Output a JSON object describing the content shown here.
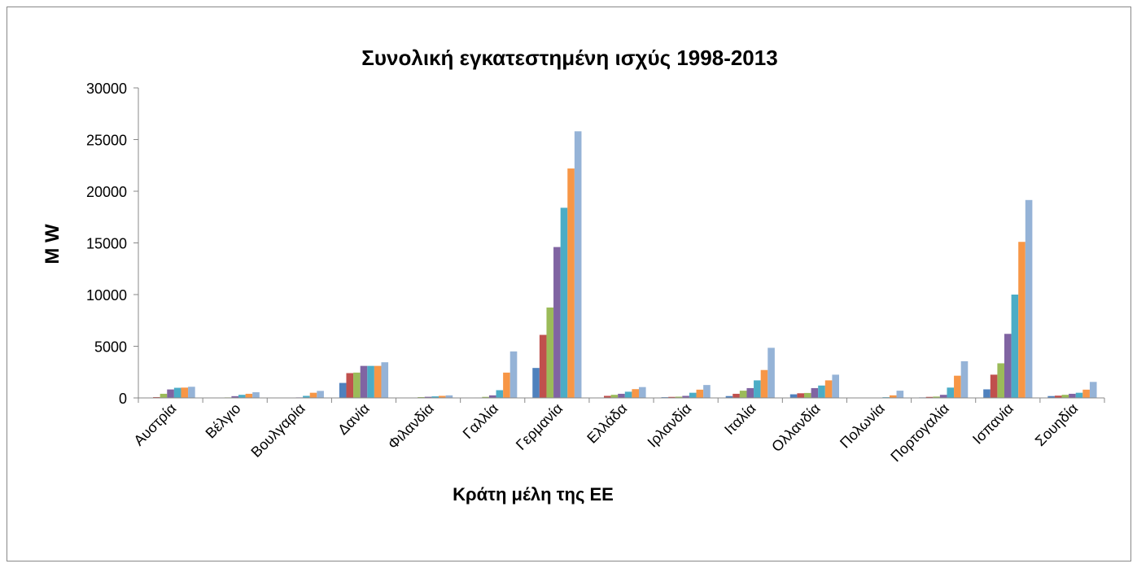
{
  "chart_data": {
    "type": "bar",
    "title": "Συνολική εγκατεστημένη ισχύς 1998-2013",
    "y_label": "M W",
    "x_label": "Κράτη μέλη της ΕΕ",
    "categories": [
      "Αυστρία",
      "Βέλγιο",
      "Βουλγαρία",
      "Δανία",
      "Φιλανδία",
      "Γαλλία",
      "Γερμανία",
      "Ελλάδα",
      "Ιρλανδία",
      "Ιταλία",
      "Ολλανδία",
      "Πολωνία",
      "Πορτογαλία",
      "Ισπανία",
      "Σουηδία"
    ],
    "series": [
      {
        "color": "#4f81bd",
        "values": [
          30,
          5,
          0,
          1450,
          20,
          20,
          2900,
          40,
          70,
          180,
          350,
          0,
          50,
          830,
          180
        ]
      },
      {
        "color": "#c0504d",
        "values": [
          80,
          15,
          0,
          2400,
          40,
          40,
          6100,
          200,
          100,
          400,
          450,
          0,
          100,
          2250,
          220
        ]
      },
      {
        "color": "#9bbb59",
        "values": [
          400,
          50,
          0,
          2450,
          80,
          100,
          8750,
          300,
          120,
          700,
          480,
          5,
          130,
          3350,
          300
        ]
      },
      {
        "color": "#8064a2",
        "values": [
          820,
          170,
          50,
          3100,
          110,
          250,
          14600,
          400,
          200,
          950,
          950,
          20,
          300,
          6200,
          400
        ]
      },
      {
        "color": "#4bacc6",
        "values": [
          980,
          300,
          200,
          3100,
          150,
          750,
          18400,
          600,
          500,
          1700,
          1200,
          70,
          1000,
          10000,
          500
        ]
      },
      {
        "color": "#f79646",
        "values": [
          1000,
          400,
          500,
          3100,
          200,
          2450,
          22200,
          850,
          800,
          2700,
          1700,
          250,
          2150,
          15100,
          800
        ]
      },
      {
        "color": "#95b3d7",
        "values": [
          1080,
          550,
          680,
          3450,
          250,
          4500,
          25800,
          1050,
          1250,
          4850,
          2250,
          700,
          3550,
          19150,
          1550
        ]
      }
    ],
    "ylim": [
      0,
      30000
    ],
    "yticks": [
      0,
      5000,
      10000,
      15000,
      20000,
      25000,
      30000
    ],
    "grid": false
  }
}
